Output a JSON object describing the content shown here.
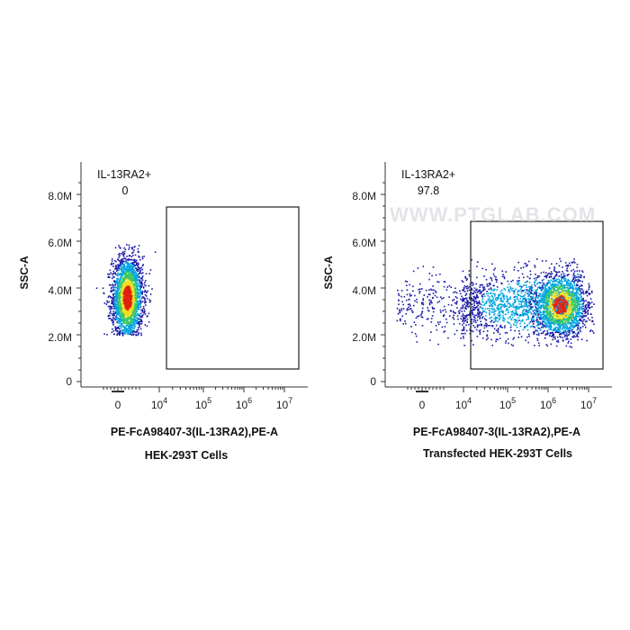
{
  "chart_data": [
    {
      "type": "scatter",
      "xlabel": "PE-FcA98407-3(IL-13RA2),PE-A",
      "ylabel": "SSC-A",
      "subtitle": "HEK-293T Cells",
      "x_scale": "biexponential",
      "yticks": [
        "0",
        "2.0M",
        "4.0M",
        "6.0M",
        "8.0M"
      ],
      "xticks": [
        "0",
        "10^4",
        "10^5",
        "10^6",
        "10^7"
      ],
      "ylim": [
        0,
        9000000
      ],
      "gate": {
        "name": "IL-13RA2+",
        "percent": "0",
        "x_range": [
          20000,
          10000000
        ],
        "y_range": [
          0,
          7500000
        ]
      },
      "population": {
        "x_center": 800,
        "x_spread": 1500,
        "y_center": 3600000,
        "y_spread": 900000
      }
    },
    {
      "type": "scatter",
      "xlabel": "PE-FcA98407-3(IL-13RA2),PE-A",
      "ylabel": "SSC-A",
      "subtitle": "Transfected HEK-293T Cells",
      "x_scale": "biexponential",
      "yticks": [
        "0",
        "2.0M",
        "4.0M",
        "6.0M",
        "8.0M"
      ],
      "xticks": [
        "0",
        "10^4",
        "10^5",
        "10^6",
        "10^7"
      ],
      "ylim": [
        0,
        9000000
      ],
      "gate": {
        "name": "IL-13RA2+",
        "percent": "97.8",
        "x_range": [
          20000,
          10000000
        ],
        "y_range": [
          0,
          7500000
        ]
      },
      "population": {
        "x_center": 2500000,
        "x_low": 10000,
        "y_center": 3300000,
        "y_spread": 800000
      }
    }
  ],
  "watermark": "WWW.PTGLAB.COM",
  "colors": {
    "low": "#1a1aa8",
    "mid1": "#00a6e0",
    "mid2": "#3cc864",
    "high": "#f0e020",
    "peak": "#e02010"
  },
  "panels": [
    {
      "ylabel": "SSC-A",
      "xlabel": "PE-FcA98407-3(IL-13RA2),PE-A",
      "subtitle": "HEK-293T Cells",
      "gate_name": "IL-13RA2+",
      "gate_pct": "0"
    },
    {
      "ylabel": "SSC-A",
      "xlabel": "PE-FcA98407-3(IL-13RA2),PE-A",
      "subtitle": "Transfected HEK-293T Cells",
      "gate_name": "IL-13RA2+",
      "gate_pct": "97.8"
    }
  ],
  "ticks": {
    "y": [
      "0",
      "2.0M",
      "4.0M",
      "6.0M",
      "8.0M"
    ],
    "x0": "0",
    "x_base": "10",
    "x_exp": [
      "4",
      "5",
      "6",
      "7"
    ]
  }
}
